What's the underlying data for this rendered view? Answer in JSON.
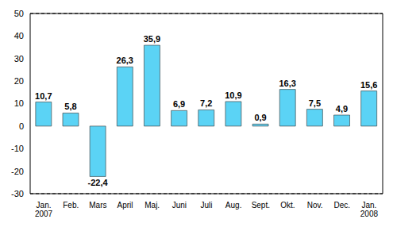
{
  "chart_data": {
    "type": "bar",
    "categories": [
      "Jan. 2007",
      "Feb.",
      "Mars",
      "April",
      "Maj.",
      "Juni",
      "Juli",
      "Aug.",
      "Sept.",
      "Okt.",
      "Nov.",
      "Dec.",
      "Jan. 2008"
    ],
    "values": [
      10.7,
      5.8,
      -22.4,
      26.3,
      35.9,
      6.9,
      7.2,
      10.9,
      0.9,
      16.3,
      7.5,
      4.9,
      15.6
    ],
    "value_labels": [
      "10,7",
      "5,8",
      "-22,4",
      "26,3",
      "35,9",
      "6,9",
      "7,2",
      "10,9",
      "0,9",
      "16,3",
      "7,5",
      "4,9",
      "15,6"
    ],
    "data_labels": true,
    "color": "#5bd3f5",
    "ylim": [
      -30,
      50
    ],
    "yticks": [
      -30,
      -20,
      -10,
      0,
      10,
      20,
      30,
      40,
      50
    ],
    "grid": true
  }
}
